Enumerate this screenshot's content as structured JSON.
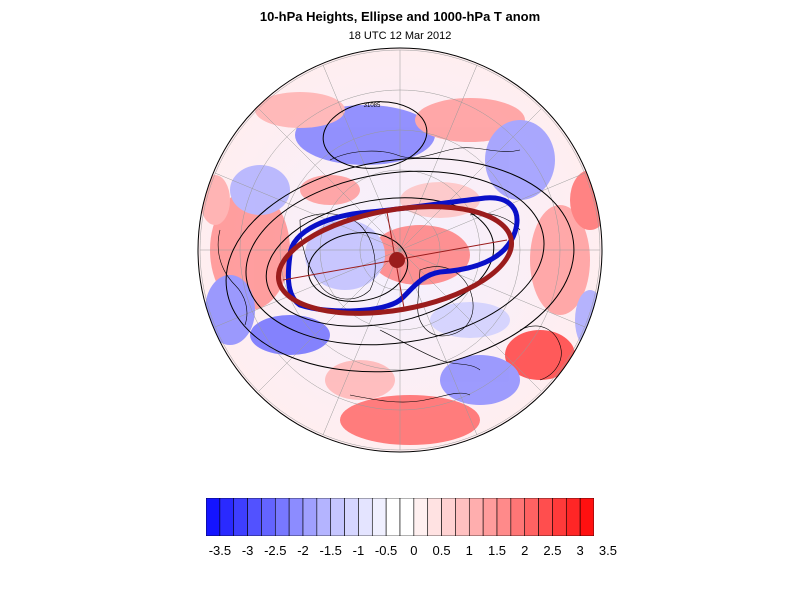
{
  "title": "10-hPa Heights, Ellipse and 1000-hPa T anom",
  "subtitle": "18 UTC 12 Mar 2012",
  "contour_label": "31085",
  "colors": {
    "ellipse": "#9b1c1c",
    "vortex_edge": "#0a10c8",
    "contour": "#000000",
    "coast": "#000000",
    "grid": "#888888",
    "neg_max": "#1010ff",
    "pos_max": "#ff1010"
  },
  "colorbar": {
    "labels": [
      "-3.5",
      "-3",
      "-2.5",
      "-2",
      "-1.5",
      "-1",
      "-0.5",
      "0",
      "0.5",
      "1",
      "1.5",
      "2",
      "2.5",
      "3",
      "3.5"
    ],
    "colors": [
      "#1414ff",
      "#2a2aff",
      "#3e3eff",
      "#5252ff",
      "#6464ff",
      "#7878ff",
      "#8c8cff",
      "#a0a0ff",
      "#b4b4ff",
      "#c6c6ff",
      "#d6d6ff",
      "#e4e4ff",
      "#f0f0ff",
      "#ffffff",
      "#ffffff",
      "#fff0f0",
      "#ffe2e2",
      "#ffd2d2",
      "#ffc0c0",
      "#ffaeae",
      "#ff9c9c",
      "#ff8a8a",
      "#ff7676",
      "#ff6262",
      "#ff4e4e",
      "#ff3a3a",
      "#ff2626",
      "#ff1010"
    ]
  }
}
